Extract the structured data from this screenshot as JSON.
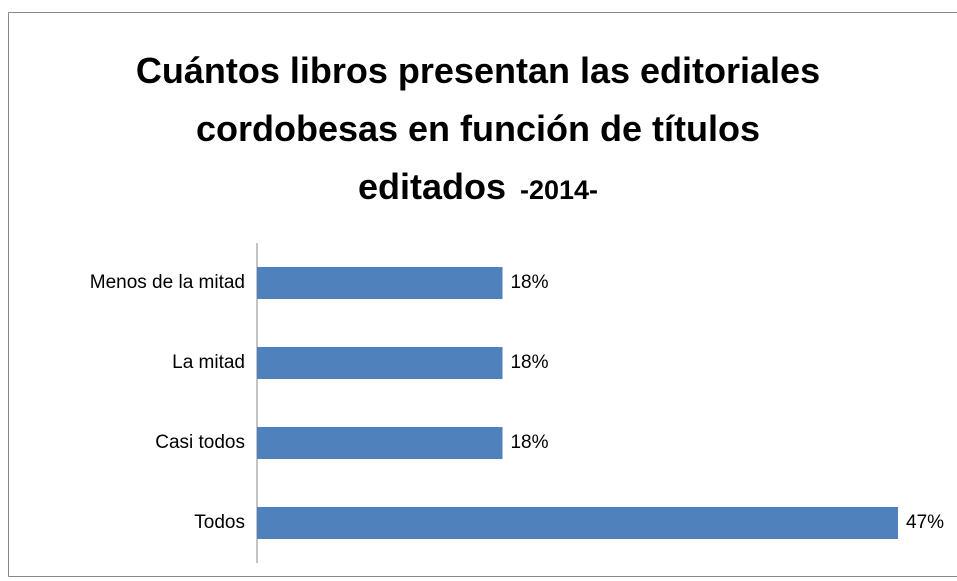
{
  "chart_data": {
    "type": "bar",
    "orientation": "horizontal",
    "title": "Cuántos libros presentan las editoriales cordobesas en función de títulos editados",
    "subtitle": "-2014-",
    "categories": [
      "Menos de la mitad",
      "La mitad",
      "Casi todos",
      "Todos"
    ],
    "values": [
      18,
      18,
      18,
      47
    ],
    "value_labels": [
      "18%",
      "18%",
      "18%",
      "47%"
    ],
    "color": "#4f81bd"
  }
}
